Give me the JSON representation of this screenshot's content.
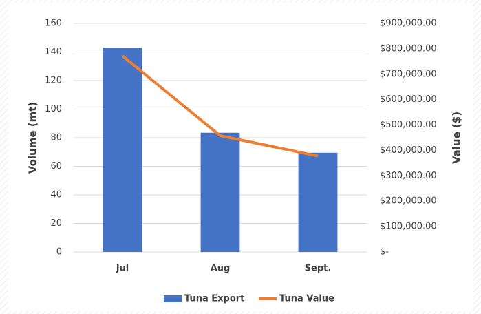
{
  "chart_data": {
    "type": "bar",
    "categories": [
      "Jul",
      "Aug",
      "Sept."
    ],
    "series": [
      {
        "name": "Tuna Export",
        "type": "bar",
        "color": "#4472c4",
        "values": [
          143,
          83.5,
          69.5
        ]
      },
      {
        "name": "Tuna Value",
        "type": "line",
        "axis": "y2",
        "color": "#ed7d31",
        "values": [
          772000,
          458000,
          378000
        ]
      }
    ],
    "ylabel": "Volume (mt)",
    "y2label": "Value ($)",
    "ylim": [
      0,
      160
    ],
    "yticks": [
      0,
      20,
      40,
      60,
      80,
      100,
      120,
      140,
      160
    ],
    "y2lim": [
      0,
      900000
    ],
    "y2ticks": [
      {
        "value": 0,
        "label": "$-"
      },
      {
        "value": 100000,
        "label": "$100,000.00"
      },
      {
        "value": 200000,
        "label": "$200,000.00"
      },
      {
        "value": 300000,
        "label": "$300,000.00"
      },
      {
        "value": 400000,
        "label": "$400,000.00"
      },
      {
        "value": 500000,
        "label": "$500,000.00"
      },
      {
        "value": 600000,
        "label": "$600,000.00"
      },
      {
        "value": 700000,
        "label": "$700,000.00"
      },
      {
        "value": 800000,
        "label": "$800,000.00"
      },
      {
        "value": 900000,
        "label": "$900,000.00"
      }
    ],
    "grid": true,
    "legend": "bottom"
  }
}
